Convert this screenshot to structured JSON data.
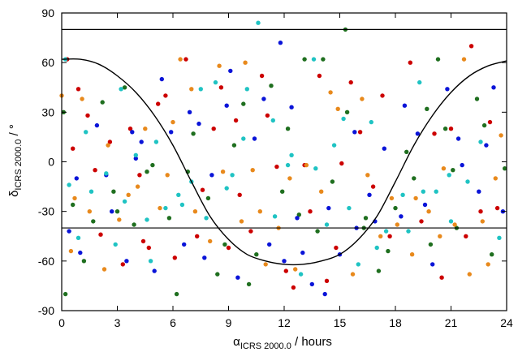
{
  "chart_data": {
    "type": "scatter",
    "title": "",
    "xlabel": {
      "symbol": "α",
      "subscript": "ICRS 2000.0",
      "suffix": " / hours"
    },
    "ylabel": {
      "symbol": "δ",
      "subscript": "ICRS 2000.0",
      "suffix": " / °"
    },
    "xlim": [
      0,
      24
    ],
    "ylim": [
      -90,
      90
    ],
    "xticks": [
      0,
      3,
      6,
      9,
      12,
      15,
      18,
      21,
      24
    ],
    "yticks": [
      -90,
      -60,
      -30,
      0,
      30,
      60,
      90
    ],
    "grid": false,
    "legend": "none",
    "reference_lines": [
      {
        "kind": "horizontal",
        "y": 80
      },
      {
        "kind": "horizontal",
        "y": -40
      },
      {
        "kind": "curve",
        "description": "galactic plane",
        "x": [
          0,
          1,
          2,
          3,
          4,
          5,
          6,
          7,
          8,
          9,
          10,
          11,
          12,
          13,
          14,
          15,
          16,
          17,
          18,
          19,
          20,
          21,
          22,
          23,
          24
        ],
        "y": [
          62,
          62,
          59,
          52,
          42,
          28,
          10,
          -12,
          -33,
          -47,
          -56,
          -60,
          -62,
          -62,
          -60,
          -56,
          -47,
          -33,
          -12,
          10,
          28,
          42,
          52,
          58,
          61
        ]
      }
    ],
    "series": [
      {
        "color": "#cc0000",
        "points": [
          [
            0.3,
            62
          ],
          [
            0.9,
            44
          ],
          [
            1.4,
            28
          ],
          [
            2.6,
            12
          ],
          [
            3.3,
            -62
          ],
          [
            4.2,
            -8
          ],
          [
            5.6,
            40
          ],
          [
            6.1,
            -58
          ],
          [
            7.3,
            -45
          ],
          [
            8.2,
            20
          ],
          [
            9.0,
            -52
          ],
          [
            10.2,
            -42
          ],
          [
            10.8,
            52
          ],
          [
            11.6,
            -3
          ],
          [
            12.5,
            -76
          ],
          [
            13.4,
            -30
          ],
          [
            14.3,
            -72
          ],
          [
            15.1,
            -1
          ],
          [
            16.1,
            18
          ],
          [
            16.8,
            -15
          ],
          [
            17.7,
            -45
          ],
          [
            18.8,
            60
          ],
          [
            20.1,
            17
          ],
          [
            21.0,
            20
          ],
          [
            21.8,
            -45
          ],
          [
            22.6,
            -30
          ],
          [
            23.5,
            -28
          ],
          [
            0.6,
            8
          ],
          [
            1.8,
            -5
          ],
          [
            3.7,
            20
          ],
          [
            4.7,
            -52
          ],
          [
            5.2,
            35
          ],
          [
            6.7,
            62
          ],
          [
            7.6,
            -17
          ],
          [
            8.6,
            45
          ],
          [
            9.6,
            -20
          ],
          [
            11.1,
            28
          ],
          [
            12.1,
            -66
          ],
          [
            13.9,
            52
          ],
          [
            14.8,
            -52
          ],
          [
            15.6,
            48
          ],
          [
            17.3,
            40
          ],
          [
            19.4,
            -36
          ],
          [
            20.5,
            -70
          ],
          [
            22.1,
            70
          ],
          [
            23.1,
            24
          ],
          [
            2.1,
            -44
          ],
          [
            4.4,
            -48
          ],
          [
            9.4,
            25
          ],
          [
            13.1,
            -2
          ]
        ]
      },
      {
        "color": "#1f6f1f",
        "points": [
          [
            0.1,
            30
          ],
          [
            0.6,
            -26
          ],
          [
            1.2,
            -60
          ],
          [
            2.2,
            36
          ],
          [
            3.0,
            -30
          ],
          [
            3.9,
            -38
          ],
          [
            4.6,
            -6
          ],
          [
            5.8,
            -34
          ],
          [
            6.8,
            -6
          ],
          [
            7.9,
            -22
          ],
          [
            8.8,
            -50
          ],
          [
            9.8,
            35
          ],
          [
            10.5,
            -56
          ],
          [
            11.3,
            46
          ],
          [
            12.2,
            20
          ],
          [
            13.1,
            62
          ],
          [
            13.8,
            -42
          ],
          [
            14.6,
            -12
          ],
          [
            15.4,
            30
          ],
          [
            16.4,
            -34
          ],
          [
            17.1,
            -66
          ],
          [
            18.0,
            -28
          ],
          [
            19.0,
            -10
          ],
          [
            19.9,
            -50
          ],
          [
            20.7,
            20
          ],
          [
            21.3,
            -40
          ],
          [
            22.4,
            38
          ],
          [
            23.2,
            -56
          ],
          [
            0.2,
            -80
          ],
          [
            1.7,
            -36
          ],
          [
            3.4,
            45
          ],
          [
            4.9,
            -2
          ],
          [
            6.2,
            -80
          ],
          [
            7.1,
            17
          ],
          [
            8.4,
            -68
          ],
          [
            9.3,
            10
          ],
          [
            10.1,
            -74
          ],
          [
            11.9,
            -18
          ],
          [
            12.8,
            -32
          ],
          [
            14.1,
            62
          ],
          [
            15.3,
            80
          ],
          [
            16.3,
            -40
          ],
          [
            17.6,
            -54
          ],
          [
            18.6,
            6
          ],
          [
            19.7,
            32
          ],
          [
            20.3,
            62
          ],
          [
            21.1,
            -5
          ],
          [
            22.8,
            22
          ],
          [
            23.9,
            -4
          ],
          [
            2.8,
            -18
          ]
        ]
      },
      {
        "color": "#0a14d8",
        "points": [
          [
            0.4,
            -42
          ],
          [
            1.0,
            -55
          ],
          [
            1.9,
            22
          ],
          [
            2.7,
            -30
          ],
          [
            3.8,
            18
          ],
          [
            4.3,
            12
          ],
          [
            5.0,
            -66
          ],
          [
            5.9,
            18
          ],
          [
            6.6,
            -50
          ],
          [
            7.4,
            23
          ],
          [
            8.1,
            -8
          ],
          [
            8.9,
            34
          ],
          [
            9.5,
            -70
          ],
          [
            10.4,
            14
          ],
          [
            11.2,
            -50
          ],
          [
            12.0,
            -60
          ],
          [
            12.7,
            -34
          ],
          [
            13.5,
            -74
          ],
          [
            14.2,
            -80
          ],
          [
            15.0,
            -56
          ],
          [
            15.8,
            18
          ],
          [
            16.6,
            -20
          ],
          [
            17.4,
            8
          ],
          [
            18.3,
            -33
          ],
          [
            19.2,
            17
          ],
          [
            20.0,
            -62
          ],
          [
            20.8,
            44
          ],
          [
            21.6,
            -2
          ],
          [
            22.5,
            -18
          ],
          [
            23.3,
            45
          ],
          [
            23.8,
            -30
          ],
          [
            0.8,
            -10
          ],
          [
            2.4,
            -8
          ],
          [
            4.0,
            2
          ],
          [
            5.4,
            50
          ],
          [
            6.9,
            30
          ],
          [
            7.7,
            -58
          ],
          [
            9.1,
            55
          ],
          [
            10.9,
            38
          ],
          [
            11.8,
            72
          ],
          [
            13.0,
            -55
          ],
          [
            14.4,
            -28
          ],
          [
            15.9,
            -40
          ],
          [
            16.9,
            -36
          ],
          [
            18.5,
            34
          ],
          [
            19.6,
            -26
          ],
          [
            21.4,
            14
          ],
          [
            22.9,
            10
          ],
          [
            3.5,
            -60
          ],
          [
            12.4,
            33
          ]
        ]
      },
      {
        "color": "#e8891c",
        "points": [
          [
            0.0,
            40
          ],
          [
            0.7,
            -22
          ],
          [
            1.5,
            -30
          ],
          [
            2.3,
            -65
          ],
          [
            3.1,
            -35
          ],
          [
            3.6,
            -20
          ],
          [
            4.5,
            20
          ],
          [
            5.3,
            -28
          ],
          [
            6.0,
            24
          ],
          [
            6.4,
            62
          ],
          [
            7.2,
            -30
          ],
          [
            8.0,
            -48
          ],
          [
            8.7,
            -6
          ],
          [
            9.7,
            -36
          ],
          [
            10.3,
            -5
          ],
          [
            11.0,
            -62
          ],
          [
            11.7,
            -40
          ],
          [
            12.3,
            -10
          ],
          [
            13.2,
            -2
          ],
          [
            14.0,
            -18
          ],
          [
            14.9,
            32
          ],
          [
            15.7,
            -68
          ],
          [
            16.5,
            -8
          ],
          [
            17.2,
            -45
          ],
          [
            18.1,
            -38
          ],
          [
            19.1,
            -22
          ],
          [
            19.8,
            -30
          ],
          [
            20.6,
            -4
          ],
          [
            21.2,
            -38
          ],
          [
            22.0,
            -68
          ],
          [
            22.7,
            -36
          ],
          [
            23.4,
            -10
          ],
          [
            23.7,
            16
          ],
          [
            1.1,
            38
          ],
          [
            2.5,
            10
          ],
          [
            4.1,
            -15
          ],
          [
            5.7,
            -8
          ],
          [
            7.0,
            44
          ],
          [
            8.5,
            58
          ],
          [
            9.9,
            60
          ],
          [
            10.7,
            -30
          ],
          [
            12.6,
            -65
          ],
          [
            14.5,
            42
          ],
          [
            16.2,
            38
          ],
          [
            17.8,
            -22
          ],
          [
            18.9,
            -56
          ],
          [
            20.4,
            -45
          ],
          [
            21.7,
            62
          ],
          [
            23.0,
            -62
          ],
          [
            0.5,
            -54
          ]
        ]
      },
      {
        "color": "#1fc3c3",
        "points": [
          [
            0.2,
            62
          ],
          [
            0.9,
            -46
          ],
          [
            1.6,
            -18
          ],
          [
            2.4,
            -7
          ],
          [
            3.2,
            44
          ],
          [
            4.0,
            4
          ],
          [
            4.8,
            -60
          ],
          [
            5.6,
            -28
          ],
          [
            6.3,
            -20
          ],
          [
            7.0,
            -12
          ],
          [
            7.8,
            -34
          ],
          [
            8.3,
            48
          ],
          [
            9.2,
            -8
          ],
          [
            10.0,
            44
          ],
          [
            10.6,
            84
          ],
          [
            11.4,
            25
          ],
          [
            12.2,
            -2
          ],
          [
            12.9,
            -68
          ],
          [
            13.6,
            62
          ],
          [
            14.3,
            -38
          ],
          [
            15.2,
            26
          ],
          [
            16.0,
            -62
          ],
          [
            16.7,
            24
          ],
          [
            17.5,
            -42
          ],
          [
            18.4,
            -20
          ],
          [
            19.3,
            48
          ],
          [
            20.2,
            -18
          ],
          [
            21.0,
            -36
          ],
          [
            21.9,
            -12
          ],
          [
            22.6,
            12
          ],
          [
            23.6,
            -46
          ],
          [
            0.4,
            -14
          ],
          [
            1.3,
            18
          ],
          [
            2.9,
            -50
          ],
          [
            3.4,
            -24
          ],
          [
            4.6,
            -35
          ],
          [
            5.1,
            12
          ],
          [
            6.5,
            -26
          ],
          [
            7.5,
            44
          ],
          [
            8.9,
            -16
          ],
          [
            9.8,
            14
          ],
          [
            11.5,
            -33
          ],
          [
            12.4,
            4
          ],
          [
            13.7,
            -4
          ],
          [
            14.7,
            10
          ],
          [
            15.5,
            -28
          ],
          [
            17.0,
            -52
          ],
          [
            18.7,
            -42
          ],
          [
            19.5,
            -18
          ],
          [
            20.9,
            -8
          ]
        ]
      }
    ]
  }
}
